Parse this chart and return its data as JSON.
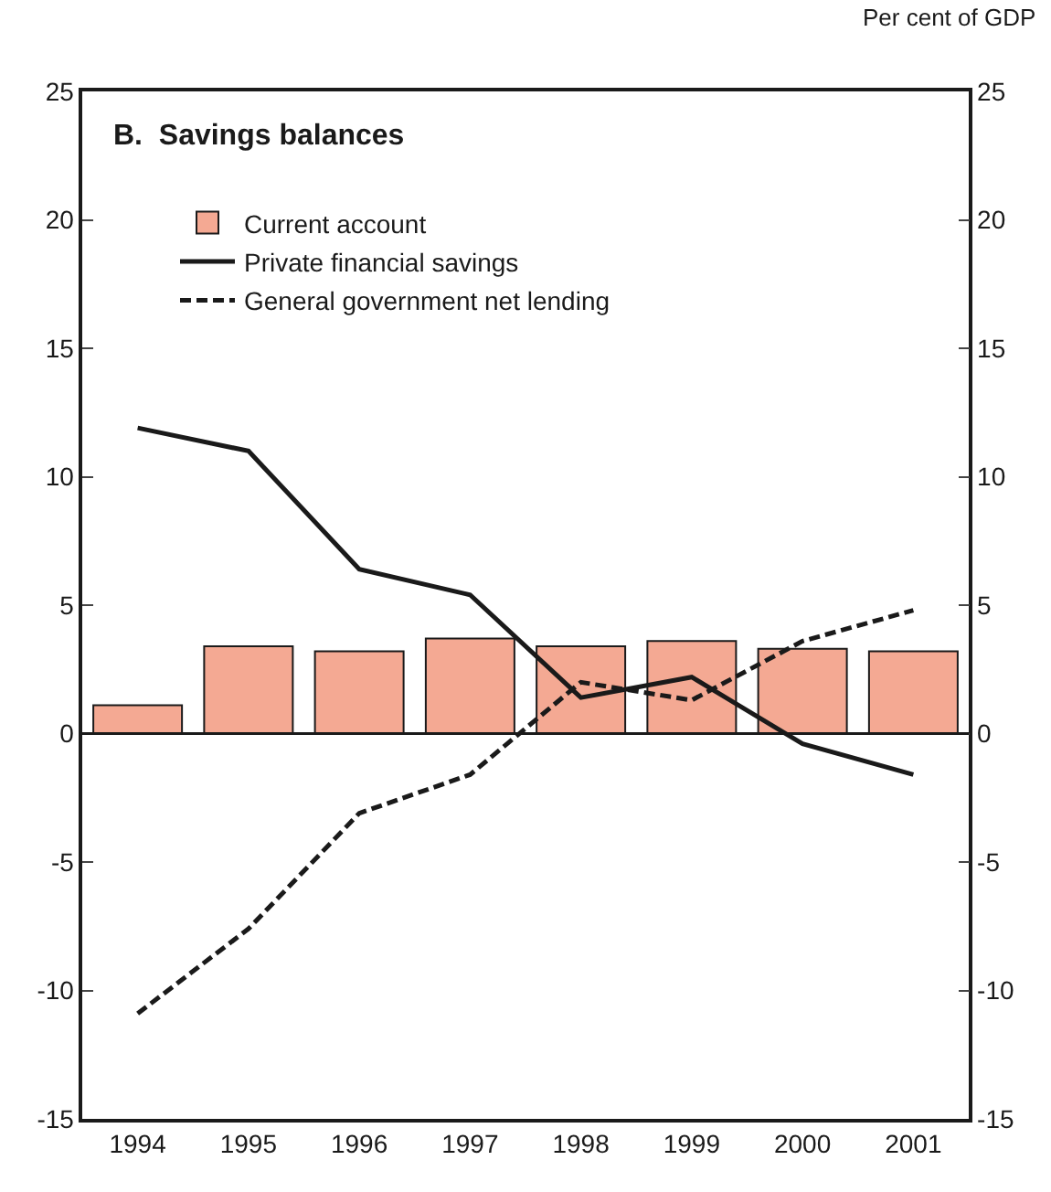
{
  "chart_data": {
    "type": "bar",
    "title": "B.  Savings balances",
    "annotations": [
      "Per cent of GDP"
    ],
    "categories": [
      "1994",
      "1995",
      "1996",
      "1997",
      "1998",
      "1999",
      "2000",
      "2001"
    ],
    "series": [
      {
        "name": "Current account",
        "color": "#f4a993",
        "values": [
          1.1,
          3.4,
          3.2,
          3.7,
          3.4,
          3.6,
          3.3,
          3.2
        ]
      },
      {
        "name": "Private financial savings",
        "type": "line",
        "color": "#1a1a1a",
        "line_style": "solid",
        "values": [
          11.9,
          11.0,
          6.4,
          5.4,
          1.4,
          2.2,
          -0.4,
          -1.6
        ]
      },
      {
        "name": "General government net lending",
        "type": "line",
        "color": "#1a1a1a",
        "line_style": "dashed",
        "values": [
          -10.9,
          -7.6,
          -3.1,
          -1.6,
          2.0,
          1.3,
          3.6,
          4.8
        ]
      }
    ],
    "ylim": [
      -15,
      25
    ],
    "yticks": [
      -15,
      -10,
      -5,
      0,
      5,
      10,
      15,
      20,
      25
    ],
    "y2lim": [
      -15,
      25
    ],
    "y2ticks": [
      -15,
      -10,
      -5,
      0,
      5,
      10,
      15,
      20,
      25
    ],
    "ref_lines": [
      {
        "axis": "y",
        "value": 0
      }
    ],
    "legend": "top left",
    "marker": "none"
  }
}
